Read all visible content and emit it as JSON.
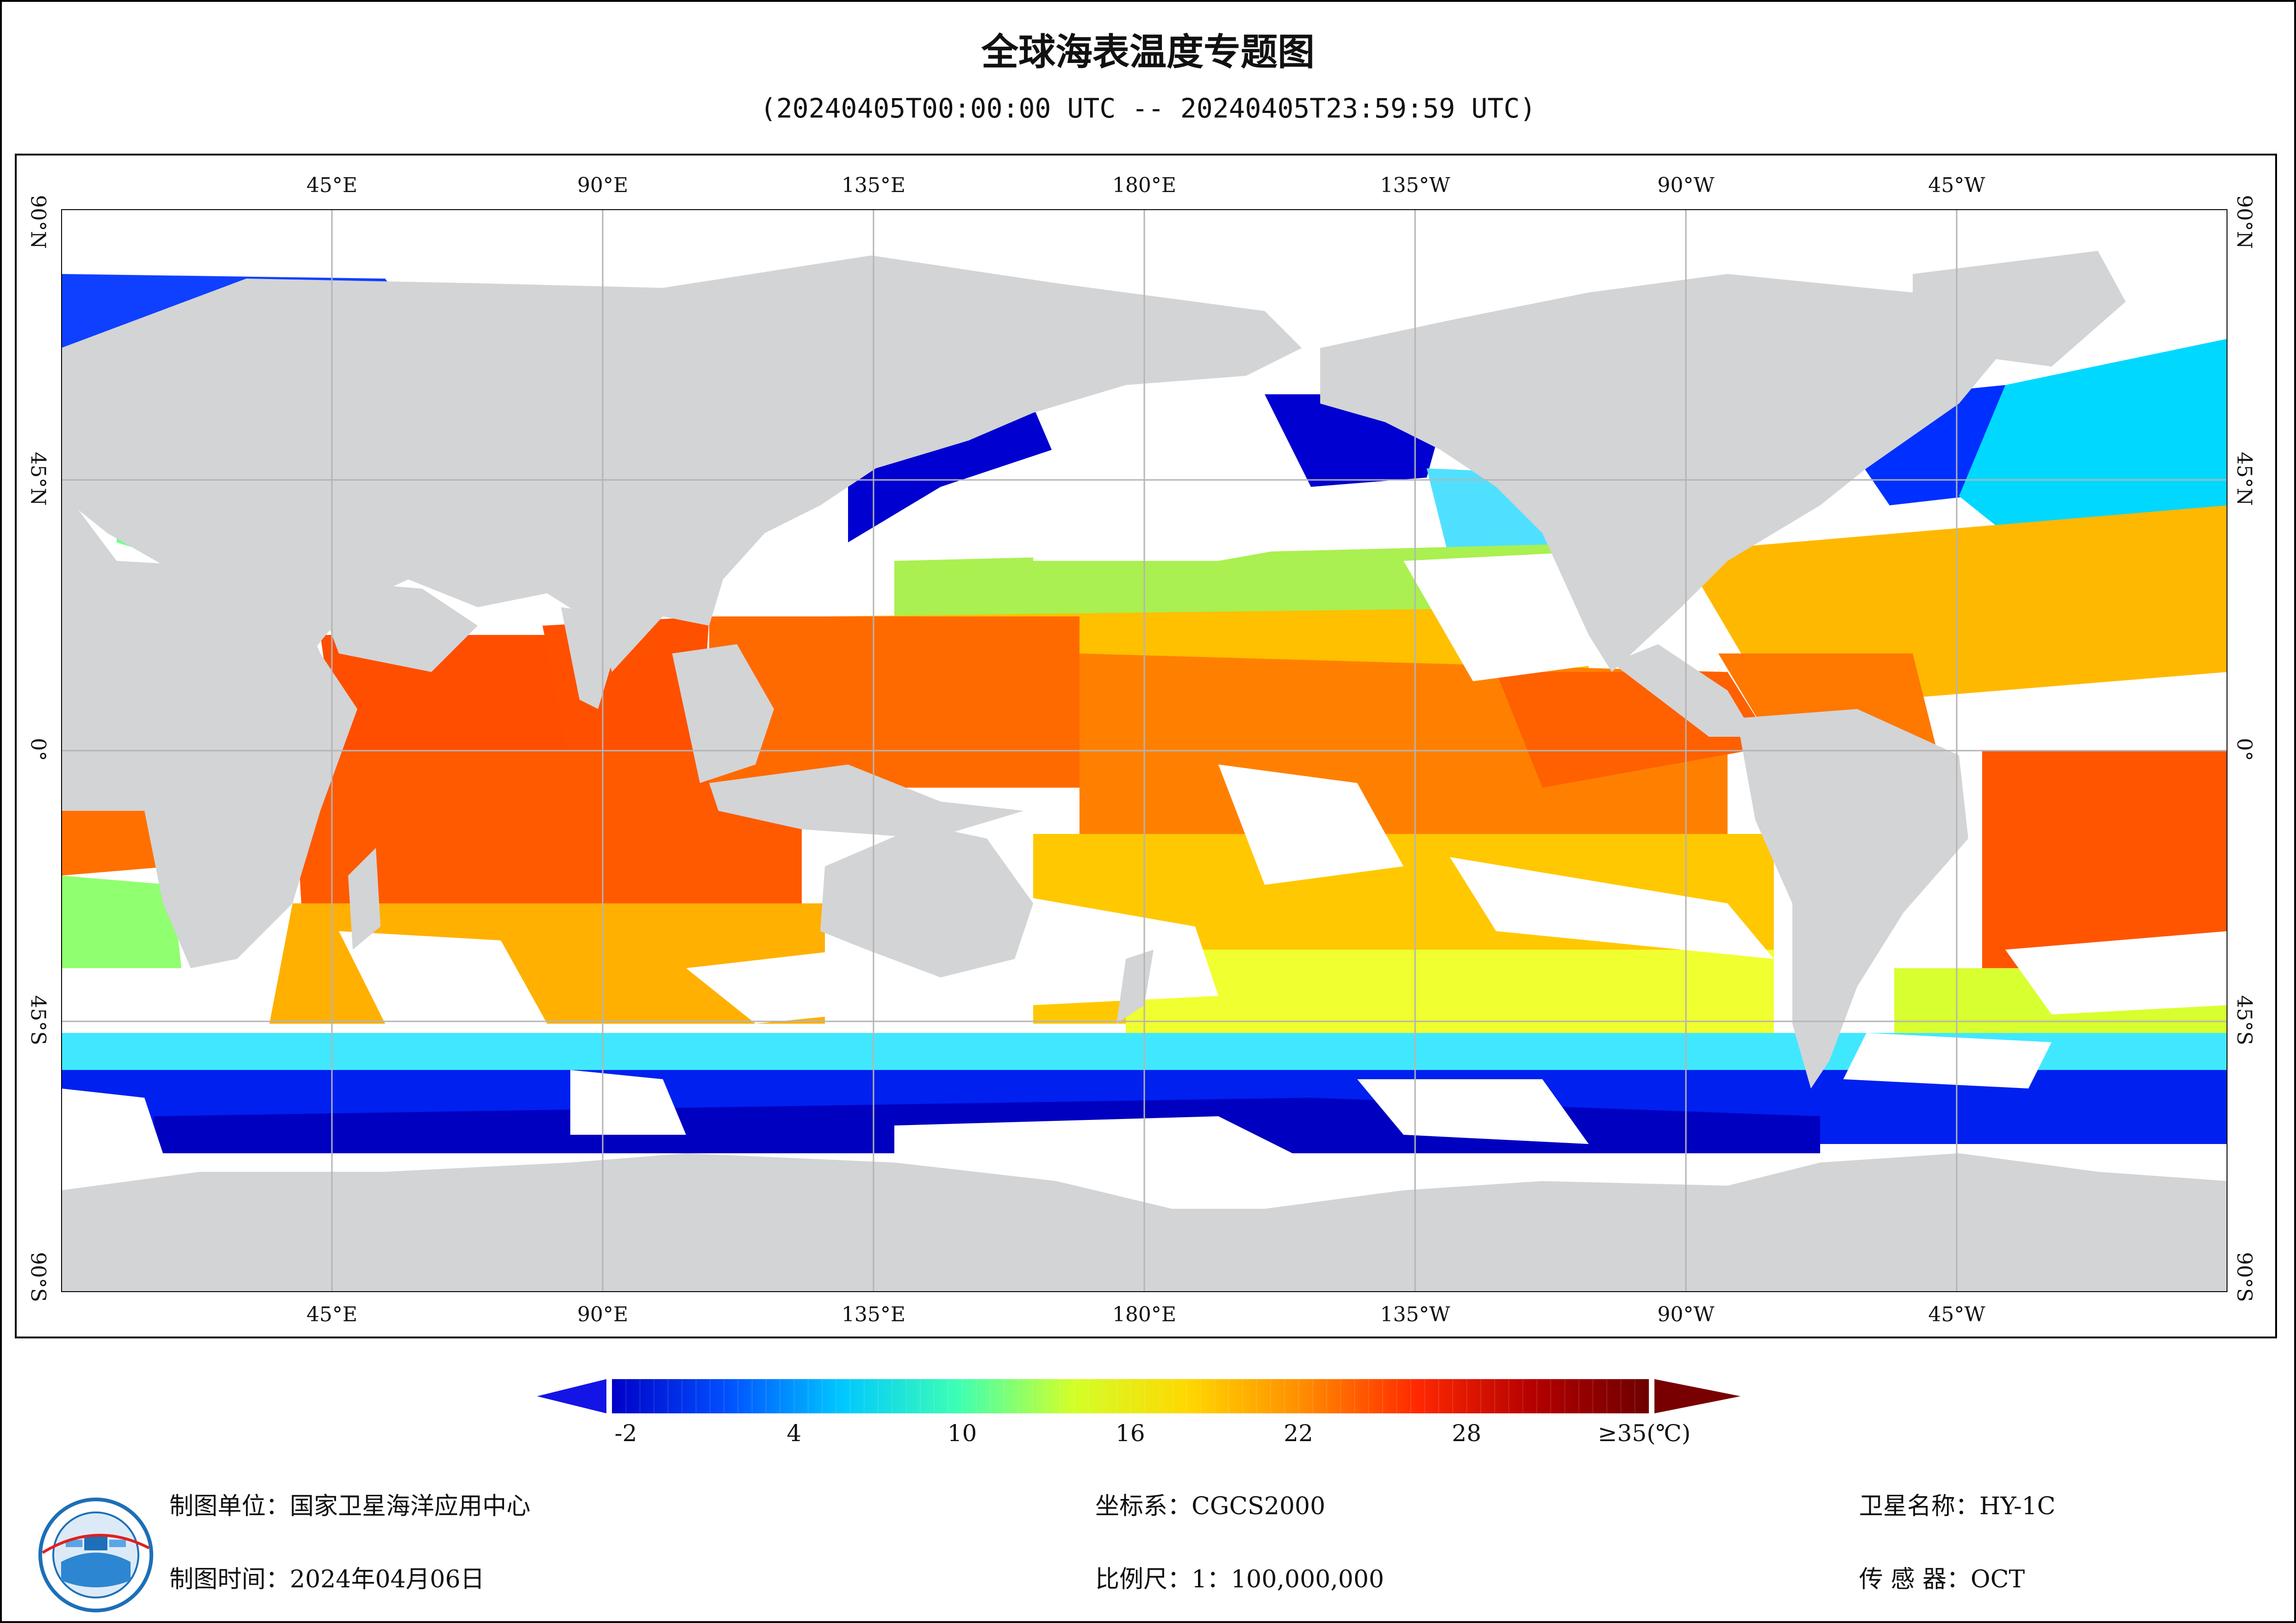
{
  "title": "全球海表温度专题图",
  "subtitle": "(20240405T00:00:00 UTC -- 20240405T23:59:59 UTC)",
  "map": {
    "lon_labels": [
      "45°E",
      "90°E",
      "135°E",
      "180°E",
      "135°W",
      "90°W",
      "45°W"
    ],
    "lat_labels": [
      "90°N",
      "45°N",
      "0°",
      "45°S",
      "90°S"
    ],
    "land_color": "#d3d4d6",
    "ocean_nodata_color": "#ffffff",
    "gridline_color": "#b4b4b4",
    "region_temperatures_c": {
      "north_atlantic_high_latitude": 2,
      "north_pacific_high_latitude": 0,
      "tropical_pacific": 28,
      "tropical_indian_ocean": 29,
      "subtropical_belts": 21,
      "southern_ocean": 1
    }
  },
  "colorbar": {
    "tick_labels": [
      "-2",
      "4",
      "10",
      "16",
      "22",
      "28",
      "≥35(℃)"
    ],
    "min": -2,
    "max": 35,
    "palette": [
      "#0000c8",
      "#0050ff",
      "#00c8ff",
      "#3cffb4",
      "#d2ff28",
      "#ffd700",
      "#ff8c00",
      "#ff2800",
      "#b40000",
      "#6e0000"
    ],
    "under_color": "#1414e6",
    "over_color": "#780000"
  },
  "footer": {
    "unit": "制图单位：国家卫星海洋应用中心",
    "date": "制图时间：2024年04月06日",
    "crs": "坐标系：CGCS2000",
    "scale": "比例尺：1：100,000,000",
    "satellite": "卫星名称：HY-1C",
    "sensor": "传 感 器：OCT"
  },
  "icons": {
    "logo": "nsoas-satellite-logo-icon"
  }
}
